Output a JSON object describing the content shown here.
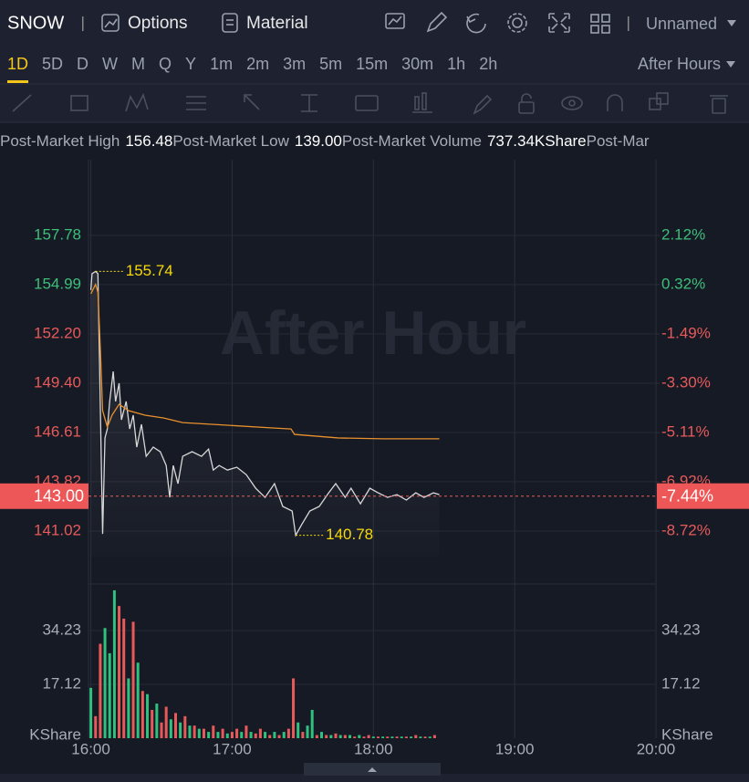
{
  "toolbar": {
    "symbol": "SNOW",
    "options": "Options",
    "material": "Material",
    "layout": "Unnamed"
  },
  "timeframes": {
    "items": [
      "1D",
      "5D",
      "D",
      "W",
      "M",
      "Q",
      "Y",
      "1m",
      "2m",
      "3m",
      "5m",
      "15m",
      "30m",
      "1h",
      "2h"
    ],
    "active": 0,
    "session": "After Hours"
  },
  "stats": [
    {
      "label": "Post-Market High",
      "value": "156.48"
    },
    {
      "label": "Post-Market Low",
      "value": "139.00"
    },
    {
      "label": "Post-Market Volume",
      "value": "737.34KShare"
    },
    {
      "label": "Post-Mar"
    }
  ],
  "watermark": "After Hour",
  "chart_data": [
    {
      "type": "line",
      "xlim": [
        -1,
        240
      ],
      "ylim": [
        138.54,
        162.07
      ],
      "y2lim": [
        -10.33,
        4.9
      ],
      "yticks": [
        157.78,
        154.99,
        {
          "value": 152.2,
          "label": "152.20"
        },
        {
          "value": 149.4,
          "label": "149.40"
        },
        146.61,
        143.82,
        141.02
      ],
      "y2ticks": [
        {
          "value": 2.12,
          "label": "2.12%"
        },
        {
          "value": 0.32,
          "label": "0.32%"
        },
        {
          "value": -1.49,
          "label": "-1.49%"
        },
        {
          "value": -3.3,
          "label": "-3.30%"
        },
        {
          "value": -5.11,
          "label": "-5.11%"
        },
        {
          "value": -6.92,
          "label": "-6.92%"
        },
        {
          "value": -8.72,
          "label": "-8.72%"
        }
      ],
      "up_color": "#3dbf7a",
      "down_color": "#e85a5a",
      "grid": true,
      "series": [
        {
          "name": "Price",
          "color": "#d8d8d8",
          "x": [
            0,
            0.5,
            2,
            3,
            5,
            6,
            7,
            8,
            9.5,
            10.5,
            12,
            13,
            15,
            16.5,
            18,
            19.5,
            21.5,
            23.5,
            26.5,
            29.5,
            32,
            33.5,
            35,
            37,
            39,
            43,
            47,
            50,
            52,
            54.5,
            58,
            62,
            66,
            70,
            74,
            78,
            81.5,
            85.5,
            87,
            89.5,
            93,
            97,
            101,
            104,
            108,
            110.5,
            114.5,
            118.5,
            122,
            126,
            130,
            134,
            138,
            141.5,
            145.5,
            148
          ],
          "values": [
            154.68,
            155.61,
            155.74,
            155.61,
            140.86,
            146.3,
            146.81,
            148.37,
            150.07,
            148.37,
            149.4,
            147.33,
            148.37,
            146.81,
            147.59,
            145.78,
            147.07,
            145.26,
            145.78,
            145.52,
            144.74,
            142.93,
            144.74,
            143.71,
            145.26,
            145.52,
            145.26,
            145.67,
            144.48,
            144.74,
            144.48,
            144.64,
            144.22,
            143.45,
            142.93,
            143.71,
            142.42,
            142.16,
            140.78,
            141.38,
            142.16,
            142.42,
            143.19,
            143.71,
            142.93,
            143.45,
            142.57,
            143.45,
            143.19,
            142.93,
            143.09,
            142.78,
            143.19,
            142.93,
            143.19,
            143.09
          ]
        },
        {
          "name": "Average",
          "color": "#e8912d",
          "x": [
            0,
            2,
            3,
            4,
            5,
            7,
            9,
            12,
            16,
            23,
            31,
            39,
            58,
            78,
            85,
            86.5,
            105,
            124,
            148
          ],
          "values": [
            154.47,
            155.0,
            154.57,
            151.47,
            147.85,
            146.92,
            147.59,
            148.21,
            147.85,
            147.59,
            147.43,
            147.17,
            147.02,
            146.86,
            146.81,
            146.5,
            146.3,
            146.25,
            146.25
          ]
        }
      ],
      "annotations": [
        {
          "x": 2,
          "value": 155.74
        },
        {
          "x": 87,
          "value": 140.78
        }
      ],
      "current": {
        "value": 143,
        "label": "143.00"
      },
      "current_change": {
        "value": -7.44,
        "label": "-7.44%"
      }
    },
    {
      "type": "bar",
      "xlim": [
        -1,
        240
      ],
      "ylim": [
        0,
        49
      ],
      "xticks": [
        {
          "value": 0,
          "label": "16:00"
        },
        {
          "value": 60,
          "label": "17:00"
        },
        {
          "value": 120,
          "label": "18:00"
        },
        {
          "value": 180,
          "label": "19:00"
        },
        {
          "value": 240,
          "label": "20:00"
        }
      ],
      "yticks": [
        34.23,
        17.12
      ],
      "unit": "KShare",
      "x": [
        0,
        2,
        4,
        6,
        8,
        10,
        12,
        14,
        16,
        18,
        20,
        22,
        24,
        26,
        28,
        30,
        32,
        34,
        36,
        38,
        40,
        42,
        44,
        46,
        48,
        50,
        52,
        54,
        56,
        58,
        60,
        62,
        64,
        66,
        68,
        70,
        72,
        74,
        76,
        78,
        80,
        82,
        84,
        86,
        88,
        90,
        92,
        94,
        96,
        98,
        100,
        102,
        104,
        106,
        108,
        110,
        112,
        114,
        116,
        118,
        120,
        122,
        124,
        126,
        128,
        130,
        132,
        134,
        136,
        138,
        140,
        142,
        144,
        146
      ],
      "values": [
        16,
        7,
        30,
        35,
        27,
        47,
        42,
        38,
        19,
        37,
        24,
        15,
        14,
        9,
        11,
        5,
        10,
        6,
        8,
        5,
        7,
        4,
        4,
        3,
        3,
        2,
        4,
        2,
        3,
        1.5,
        2,
        3,
        2,
        4,
        2,
        1.5,
        3,
        2,
        1,
        2,
        1,
        2,
        3,
        19,
        5,
        2,
        4,
        9,
        1,
        2,
        1,
        1,
        1.5,
        1,
        1,
        1,
        0.5,
        1,
        0.5,
        1,
        0.5,
        0.5,
        0.5,
        0.5,
        0.5,
        0.5,
        0.5,
        0.5,
        0.5,
        1,
        0.5,
        0.5,
        0.5,
        1
      ],
      "colors": [
        "#2fc27f",
        "#e85a5a",
        "#e85a5a",
        "#2fc27f",
        "#2fc27f",
        "#2fc27f",
        "#e85a5a",
        "#e85a5a",
        "#2fc27f",
        "#e85a5a",
        "#2fc27f",
        "#e85a5a",
        "#2fc27f",
        "#e85a5a",
        "#2fc27f",
        "#e85a5a",
        "#e85a5a",
        "#2fc27f",
        "#e85a5a",
        "#2fc27f",
        "#e85a5a",
        "#2fc27f",
        "#e85a5a",
        "#2fc27f",
        "#e85a5a",
        "#2fc27f",
        "#e85a5a",
        "#2fc27f",
        "#e85a5a",
        "#2fc27f",
        "#e85a5a",
        "#e85a5a",
        "#2fc27f",
        "#e85a5a",
        "#2fc27f",
        "#e85a5a",
        "#e85a5a",
        "#2fc27f",
        "#e85a5a",
        "#2fc27f",
        "#e85a5a",
        "#2fc27f",
        "#e85a5a",
        "#e85a5a",
        "#2fc27f",
        "#e85a5a",
        "#2fc27f",
        "#2fc27f",
        "#e85a5a",
        "#2fc27f",
        "#e85a5a",
        "#2fc27f",
        "#e85a5a",
        "#2fc27f",
        "#e85a5a",
        "#2fc27f",
        "#e85a5a",
        "#2fc27f",
        "#e85a5a",
        "#e85a5a",
        "#2fc27f",
        "#e85a5a",
        "#2fc27f",
        "#e85a5a",
        "#2fc27f",
        "#e85a5a",
        "#2fc27f",
        "#e85a5a",
        "#2fc27f",
        "#e85a5a",
        "#2fc27f",
        "#e85a5a",
        "#2fc27f",
        "#e85a5a"
      ]
    }
  ]
}
